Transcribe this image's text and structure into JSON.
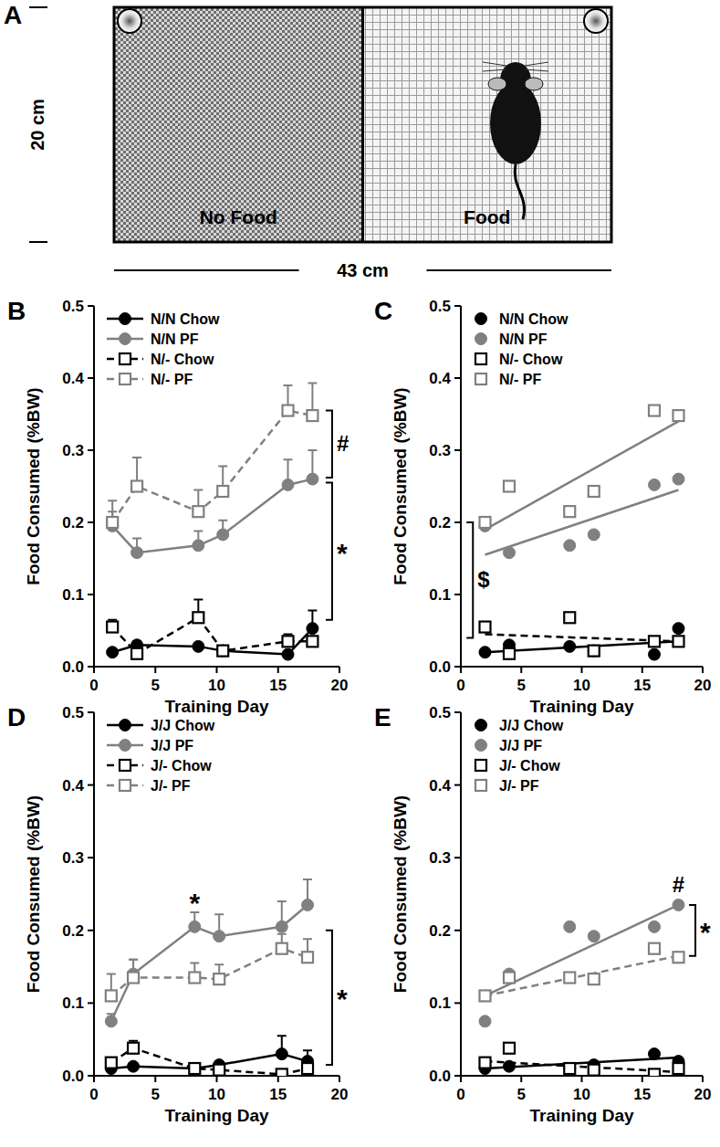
{
  "diagram": {
    "label": "A",
    "height_label": "20 cm",
    "width_label": "43 cm",
    "left_label": "No Food",
    "right_label": "Food"
  },
  "chart_data": [
    {
      "type": "line",
      "panel": "B",
      "x_label": "Training Day",
      "y_label": "Food Consumed (%BW)",
      "xlim": [
        0,
        20
      ],
      "xticks": [
        0,
        5,
        10,
        15,
        20
      ],
      "ylim": [
        0,
        0.5
      ],
      "yticks": [
        {
          "value": 0,
          "label": "0.0"
        },
        {
          "value": 0.1,
          "label": "0.1"
        },
        {
          "value": 0.2,
          "label": "0.2"
        },
        {
          "value": 0.3,
          "label": "0.3"
        },
        {
          "value": 0.4,
          "label": "0.4"
        },
        {
          "value": 0.5,
          "label": "0.5"
        }
      ],
      "legend": "upper left",
      "x": [
        1.5,
        3.5,
        8.5,
        10.5,
        15.8,
        17.8
      ],
      "series": [
        {
          "name": "N/N Chow",
          "color": "#000000",
          "marker": "circle",
          "line_style": "solid",
          "values": [
            0.02,
            0.03,
            0.028,
            0.022,
            0.017,
            0.053
          ],
          "errors": [
            0.003,
            0.005,
            0.004,
            0.004,
            0.003,
            0.025
          ]
        },
        {
          "name": "N/N PF",
          "color": "#808080",
          "marker": "circle",
          "line_style": "solid",
          "values": [
            0.195,
            0.158,
            0.168,
            0.183,
            0.252,
            0.26
          ],
          "errors": [
            0.02,
            0.02,
            0.02,
            0.02,
            0.035,
            0.04
          ]
        },
        {
          "name": "N/- Chow",
          "color": "#000000",
          "marker": "square",
          "line_style": "dashed",
          "values": [
            0.055,
            0.018,
            0.068,
            0.022,
            0.035,
            0.035
          ],
          "errors": [
            0.01,
            0.005,
            0.025,
            0.005,
            0.01,
            0.005
          ]
        },
        {
          "name": "N/- PF",
          "color": "#808080",
          "marker": "square",
          "line_style": "dashed",
          "values": [
            0.2,
            0.25,
            0.215,
            0.243,
            0.355,
            0.348
          ],
          "errors": [
            0.03,
            0.04,
            0.03,
            0.035,
            0.035,
            0.045
          ]
        }
      ],
      "annotations": [
        {
          "text": "#",
          "x": 19.4,
          "y": [
            0.262,
            0.355
          ]
        },
        {
          "text": "*",
          "x": 19.4,
          "y": [
            0.065,
            0.255
          ]
        }
      ]
    },
    {
      "type": "scatter",
      "panel": "C",
      "x_label": "Training Day",
      "y_label": "Food Consumed (%BW)",
      "xlim": [
        0,
        20
      ],
      "xticks": [
        0,
        5,
        10,
        15,
        20
      ],
      "ylim": [
        0,
        0.5
      ],
      "yticks": [
        {
          "value": 0,
          "label": "0.0"
        },
        {
          "value": 0.1,
          "label": "0.1"
        },
        {
          "value": 0.2,
          "label": "0.2"
        },
        {
          "value": 0.3,
          "label": "0.3"
        },
        {
          "value": 0.4,
          "label": "0.4"
        },
        {
          "value": 0.5,
          "label": "0.5"
        }
      ],
      "legend": "upper left",
      "x": [
        2,
        4,
        9,
        11,
        16,
        18
      ],
      "series": [
        {
          "name": "N/N Chow",
          "color": "#000000",
          "marker": "circle",
          "line_style": "solid",
          "values": [
            0.02,
            0.03,
            0.028,
            0.022,
            0.017,
            0.053
          ],
          "fit": {
            "x": [
              2,
              18
            ],
            "values": [
              0.02,
              0.035
            ]
          }
        },
        {
          "name": "N/N PF",
          "color": "#808080",
          "marker": "circle",
          "line_style": "solid",
          "values": [
            0.195,
            0.158,
            0.168,
            0.183,
            0.252,
            0.26
          ],
          "fit": {
            "x": [
              2,
              18
            ],
            "values": [
              0.155,
              0.245
            ]
          }
        },
        {
          "name": "N/- Chow",
          "color": "#000000",
          "marker": "square",
          "line_style": "dashed",
          "values": [
            0.055,
            0.018,
            0.068,
            0.022,
            0.035,
            0.035
          ],
          "fit": {
            "x": [
              2,
              18
            ],
            "values": [
              0.045,
              0.035
            ]
          }
        },
        {
          "name": "N/- PF",
          "color": "#808080",
          "marker": "square",
          "line_style": "solid",
          "values": [
            0.2,
            0.25,
            0.215,
            0.243,
            0.355,
            0.348
          ],
          "fit": {
            "x": [
              2,
              18
            ],
            "values": [
              0.19,
              0.34
            ]
          }
        }
      ],
      "annotations": [
        {
          "text": "$",
          "x": 1,
          "y": [
            0.04,
            0.2
          ]
        }
      ]
    },
    {
      "type": "line",
      "panel": "D",
      "x_label": "Training Day",
      "y_label": "Food Consumed (%BW)",
      "xlim": [
        0,
        20
      ],
      "xticks": [
        0,
        5,
        10,
        15,
        20
      ],
      "ylim": [
        0,
        0.5
      ],
      "yticks": [
        {
          "value": 0,
          "label": "0.0"
        },
        {
          "value": 0.1,
          "label": "0.1"
        },
        {
          "value": 0.2,
          "label": "0.2"
        },
        {
          "value": 0.3,
          "label": "0.3"
        },
        {
          "value": 0.4,
          "label": "0.4"
        },
        {
          "value": 0.5,
          "label": "0.5"
        }
      ],
      "legend": "upper left",
      "x": [
        1.4,
        3.2,
        8.2,
        10.2,
        15.3,
        17.4
      ],
      "series": [
        {
          "name": "J/J Chow",
          "color": "#000000",
          "marker": "circle",
          "line_style": "solid",
          "values": [
            0.01,
            0.013,
            0.01,
            0.015,
            0.03,
            0.02
          ],
          "errors": [
            0.003,
            0.004,
            0.003,
            0.003,
            0.025,
            0.015
          ]
        },
        {
          "name": "J/J PF",
          "color": "#808080",
          "marker": "circle",
          "line_style": "solid",
          "values": [
            0.075,
            0.14,
            0.205,
            0.192,
            0.205,
            0.235
          ],
          "errors": [
            0.01,
            0.02,
            0.02,
            0.03,
            0.035,
            0.035
          ]
        },
        {
          "name": "J/- Chow",
          "color": "#000000",
          "marker": "square",
          "line_style": "dashed",
          "values": [
            0.018,
            0.038,
            0.01,
            0.008,
            0.002,
            0.01
          ],
          "errors": [
            0.005,
            0.01,
            0.005,
            0.002,
            0.002,
            0.005
          ]
        },
        {
          "name": "J/- PF",
          "color": "#808080",
          "marker": "square",
          "line_style": "dashed",
          "values": [
            0.11,
            0.135,
            0.135,
            0.133,
            0.175,
            0.163
          ],
          "errors": [
            0.03,
            0.025,
            0.02,
            0.02,
            0.02,
            0.025
          ]
        }
      ],
      "annotations": [
        {
          "text": "*",
          "x": 8.2,
          "y": 0.24
        },
        {
          "text": "*",
          "x": 19.4,
          "y": [
            0.015,
            0.2
          ]
        }
      ]
    },
    {
      "type": "scatter",
      "panel": "E",
      "x_label": "Training Day",
      "y_label": "Food Consumed (%BW)",
      "xlim": [
        0,
        20
      ],
      "xticks": [
        0,
        5,
        10,
        15,
        20
      ],
      "ylim": [
        0,
        0.5
      ],
      "yticks": [
        {
          "value": 0,
          "label": "0.0"
        },
        {
          "value": 0.1,
          "label": "0.1"
        },
        {
          "value": 0.2,
          "label": "0.2"
        },
        {
          "value": 0.3,
          "label": "0.3"
        },
        {
          "value": 0.4,
          "label": "0.4"
        },
        {
          "value": 0.5,
          "label": "0.5"
        }
      ],
      "legend": "upper left",
      "x": [
        2,
        4,
        9,
        11,
        16,
        18
      ],
      "series": [
        {
          "name": "J/J Chow",
          "color": "#000000",
          "marker": "circle",
          "line_style": "solid",
          "values": [
            0.01,
            0.013,
            0.01,
            0.015,
            0.03,
            0.02
          ],
          "fit": {
            "x": [
              2,
              18
            ],
            "values": [
              0.01,
              0.025
            ]
          }
        },
        {
          "name": "J/J PF",
          "color": "#808080",
          "marker": "circle",
          "line_style": "solid",
          "values": [
            0.075,
            0.14,
            0.205,
            0.192,
            0.205,
            0.235
          ],
          "fit": {
            "x": [
              2,
              18
            ],
            "values": [
              0.11,
              0.235
            ]
          }
        },
        {
          "name": "J/- Chow",
          "color": "#000000",
          "marker": "square",
          "line_style": "dashed",
          "values": [
            0.018,
            0.038,
            0.01,
            0.008,
            0.002,
            0.01
          ],
          "fit": {
            "x": [
              2,
              18
            ],
            "values": [
              0.02,
              0.005
            ]
          }
        },
        {
          "name": "J/- PF",
          "color": "#808080",
          "marker": "square",
          "line_style": "dashed",
          "values": [
            0.11,
            0.135,
            0.135,
            0.133,
            0.175,
            0.163
          ],
          "fit": {
            "x": [
              2,
              18
            ],
            "values": [
              0.11,
              0.165
            ]
          }
        }
      ],
      "annotations": [
        {
          "text": "#",
          "x": 18,
          "y": 0.262
        },
        {
          "text": "*",
          "x": 19.4,
          "y": [
            0.165,
            0.235
          ]
        }
      ]
    }
  ]
}
